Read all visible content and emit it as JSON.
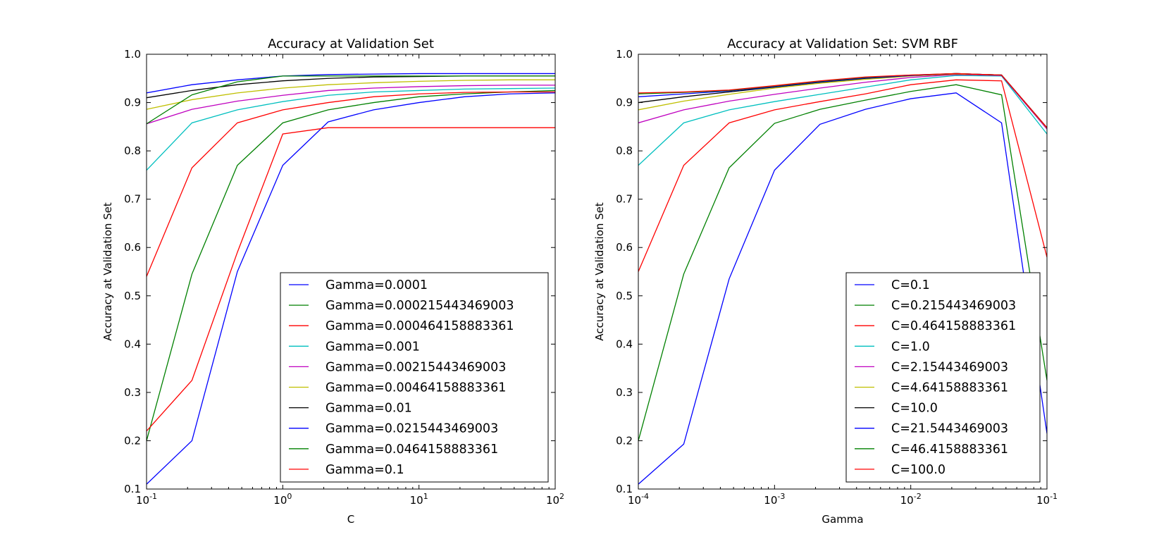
{
  "colors": [
    "#0000ff",
    "#008000",
    "#ff0000",
    "#00bfbf",
    "#bf00bf",
    "#bfbf00",
    "#000000",
    "#0000ff",
    "#008000",
    "#ff0000"
  ],
  "chart_data": [
    {
      "type": "line",
      "title": "Accuracy at Validation Set",
      "xlabel": "C",
      "ylabel": "Accuracy at Validation Set",
      "xscale": "log",
      "xlim": [
        0.1,
        100
      ],
      "ylim": [
        0.1,
        1.0
      ],
      "legend": "lower-right",
      "grid": false,
      "x": [
        0.1,
        0.215443469003,
        0.464158883361,
        1.0,
        2.15443469003,
        4.64158883361,
        10.0,
        21.5443469003,
        46.4158883361,
        100.0
      ],
      "xticks": [
        {
          "base": "10",
          "exp": "-1"
        },
        {
          "base": "10",
          "exp": "0"
        },
        {
          "base": "10",
          "exp": "1"
        },
        {
          "base": "10",
          "exp": "2"
        }
      ],
      "yticks": [
        "0.1",
        "0.2",
        "0.3",
        "0.4",
        "0.5",
        "0.6",
        "0.7",
        "0.8",
        "0.9",
        "1.0"
      ],
      "series": [
        {
          "name": "Gamma=0.0001",
          "values": [
            0.11,
            0.2,
            0.55,
            0.77,
            0.86,
            0.885,
            0.9,
            0.912,
            0.918,
            0.92
          ]
        },
        {
          "name": "Gamma=0.000215443469003",
          "values": [
            0.2,
            0.545,
            0.77,
            0.858,
            0.885,
            0.9,
            0.912,
            0.918,
            0.922,
            0.925
          ]
        },
        {
          "name": "Gamma=0.000464158883361",
          "values": [
            0.22,
            0.325,
            0.59,
            0.835,
            0.848,
            0.848,
            0.848,
            0.848,
            0.848,
            0.848
          ]
        },
        {
          "name": "Gamma=0.001",
          "values": [
            0.76,
            0.858,
            0.885,
            0.902,
            0.915,
            0.922,
            0.925,
            0.928,
            0.929,
            0.93
          ]
        },
        {
          "name": "Gamma=0.00215443469003",
          "values": [
            0.856,
            0.886,
            0.903,
            0.915,
            0.925,
            0.93,
            0.933,
            0.935,
            0.936,
            0.936
          ]
        },
        {
          "name": "Gamma=0.00464158883361",
          "values": [
            0.886,
            0.906,
            0.92,
            0.93,
            0.937,
            0.941,
            0.944,
            0.946,
            0.947,
            0.947
          ]
        },
        {
          "name": "Gamma=0.01",
          "values": [
            0.91,
            0.925,
            0.937,
            0.945,
            0.95,
            0.953,
            0.954,
            0.955,
            0.955,
            0.955
          ]
        },
        {
          "name": "Gamma=0.0215443469003",
          "values": [
            0.92,
            0.937,
            0.947,
            0.955,
            0.958,
            0.959,
            0.96,
            0.96,
            0.96,
            0.96
          ]
        },
        {
          "name": "Gamma=0.0464158883361",
          "values": [
            0.856,
            0.916,
            0.943,
            0.955,
            0.955,
            0.955,
            0.955,
            0.955,
            0.955,
            0.955
          ]
        },
        {
          "name": "Gamma=0.1",
          "values": [
            0.54,
            0.765,
            0.858,
            0.885,
            0.9,
            0.912,
            0.918,
            0.921,
            0.922,
            0.922
          ]
        }
      ]
    },
    {
      "type": "line",
      "title": "Accuracy at Validation Set: SVM RBF",
      "xlabel": "Gamma",
      "ylabel": "Accuracy at Validation Set",
      "xscale": "log",
      "xlim": [
        0.0001,
        0.1
      ],
      "ylim": [
        0.1,
        1.0
      ],
      "legend": "lower-right",
      "grid": false,
      "x": [
        0.0001,
        0.000215443469003,
        0.000464158883361,
        0.001,
        0.00215443469003,
        0.00464158883361,
        0.01,
        0.0215443469003,
        0.0464158883361,
        0.1
      ],
      "xticks": [
        {
          "base": "10",
          "exp": "-4"
        },
        {
          "base": "10",
          "exp": "-3"
        },
        {
          "base": "10",
          "exp": "-2"
        },
        {
          "base": "10",
          "exp": "-1"
        }
      ],
      "yticks": [
        "0.1",
        "0.2",
        "0.3",
        "0.4",
        "0.5",
        "0.6",
        "0.7",
        "0.8",
        "0.9",
        "1.0"
      ],
      "series": [
        {
          "name": "C=0.1",
          "values": [
            0.11,
            0.193,
            0.535,
            0.76,
            0.855,
            0.886,
            0.908,
            0.92,
            0.858,
            0.215
          ]
        },
        {
          "name": "C=0.215443469003",
          "values": [
            0.2,
            0.545,
            0.765,
            0.857,
            0.886,
            0.905,
            0.923,
            0.937,
            0.916,
            0.325
          ]
        },
        {
          "name": "C=0.464158883361",
          "values": [
            0.55,
            0.77,
            0.858,
            0.885,
            0.902,
            0.918,
            0.937,
            0.947,
            0.945,
            0.58
          ]
        },
        {
          "name": "C=1.0",
          "values": [
            0.77,
            0.858,
            0.885,
            0.902,
            0.917,
            0.932,
            0.947,
            0.956,
            0.955,
            0.835
          ]
        },
        {
          "name": "C=2.15443469003",
          "values": [
            0.858,
            0.885,
            0.903,
            0.917,
            0.93,
            0.942,
            0.952,
            0.958,
            0.956,
            0.845
          ]
        },
        {
          "name": "C=4.64158883361",
          "values": [
            0.885,
            0.903,
            0.917,
            0.93,
            0.94,
            0.948,
            0.955,
            0.959,
            0.957,
            0.847
          ]
        },
        {
          "name": "C=10.0",
          "values": [
            0.9,
            0.912,
            0.922,
            0.932,
            0.942,
            0.95,
            0.956,
            0.96,
            0.957,
            0.848
          ]
        },
        {
          "name": "C=21.5443469003",
          "values": [
            0.912,
            0.918,
            0.924,
            0.933,
            0.943,
            0.951,
            0.956,
            0.96,
            0.957,
            0.848
          ]
        },
        {
          "name": "C=46.4158883361",
          "values": [
            0.918,
            0.921,
            0.925,
            0.934,
            0.944,
            0.952,
            0.957,
            0.96,
            0.957,
            0.848
          ]
        },
        {
          "name": "C=100.0",
          "values": [
            0.92,
            0.922,
            0.926,
            0.935,
            0.945,
            0.953,
            0.957,
            0.96,
            0.957,
            0.848
          ]
        }
      ]
    }
  ]
}
